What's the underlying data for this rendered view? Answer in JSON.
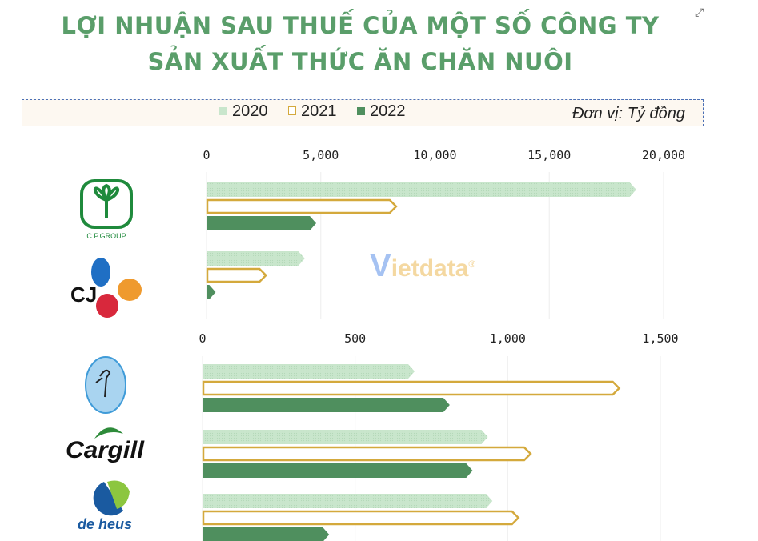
{
  "title_line1": "LỢI NHUẬN SAU THUẾ CỦA MỘT SỐ CÔNG TY",
  "title_line2": "SẢN XUẤT THỨC ĂN CHĂN NUÔI",
  "unit": "Đơn vị: Tỷ đồng",
  "watermark": "Vietdata®",
  "expand_icon": "expand-arrows-icon",
  "legend": [
    {
      "label": "2020",
      "color": "#c9e6cc"
    },
    {
      "label": "2021",
      "color": "#ffffff",
      "border": "#d4a93c"
    },
    {
      "label": "2022",
      "color": "#4f8f5e"
    }
  ],
  "chart_data": [
    {
      "type": "bar",
      "orientation": "horizontal",
      "xlim": [
        0,
        20000
      ],
      "ticks": [
        "0",
        "5,000",
        "10,000",
        "15,000",
        "20,000"
      ],
      "tick_values": [
        0,
        5000,
        10000,
        15000,
        20000
      ],
      "grid": true,
      "categories": [
        "C.P.GROUP",
        "CJ"
      ],
      "series": [
        {
          "name": "2020",
          "values": [
            18800,
            4300
          ]
        },
        {
          "name": "2021",
          "values": [
            8300,
            2600
          ]
        },
        {
          "name": "2022",
          "values": [
            4800,
            400
          ]
        }
      ]
    },
    {
      "type": "bar",
      "orientation": "horizontal",
      "xlim": [
        0,
        1500
      ],
      "ticks": [
        "0",
        "500",
        "1,000",
        "1,500"
      ],
      "tick_values": [
        0,
        500,
        1000,
        1500
      ],
      "grid": true,
      "categories": [
        "stork-logo",
        "Cargill",
        "de heus"
      ],
      "series": [
        {
          "name": "2020",
          "values": [
            695,
            935,
            950
          ]
        },
        {
          "name": "2021",
          "values": [
            1365,
            1075,
            1035
          ]
        },
        {
          "name": "2022",
          "values": [
            810,
            885,
            415
          ]
        }
      ]
    }
  ]
}
